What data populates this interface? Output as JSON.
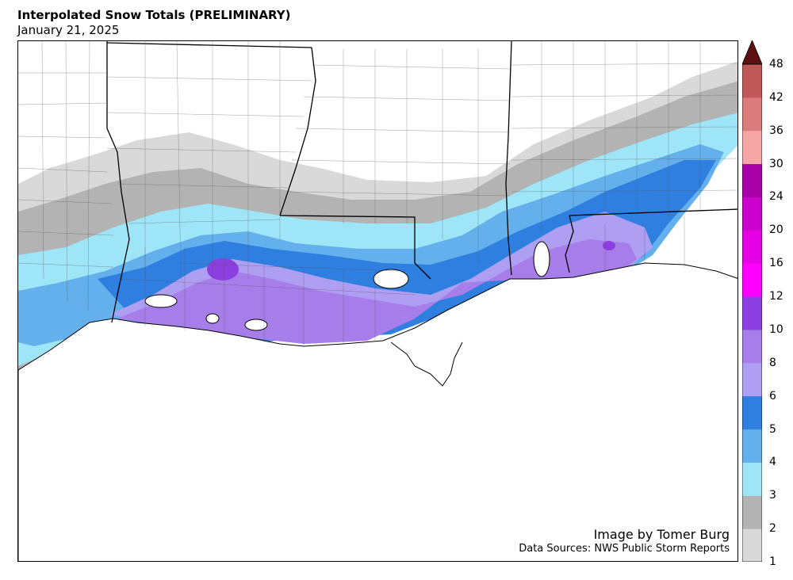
{
  "title": "Interpolated Snow Totals (PRELIMINARY)",
  "subtitle": "January 21, 2025",
  "credit": {
    "author": "Image by Tomer Burg",
    "sources": "Data Sources: NWS Public Storm Reports"
  },
  "legend": {
    "extend": "max",
    "levels": [
      {
        "value": 1,
        "label": "1",
        "color": "#d9d9d9"
      },
      {
        "value": 2,
        "label": "2",
        "color": "#b3b3b3"
      },
      {
        "value": 3,
        "label": "3",
        "color": "#9ee5f7"
      },
      {
        "value": 4,
        "label": "4",
        "color": "#63b0ec"
      },
      {
        "value": 5,
        "label": "5",
        "color": "#2e7fe0"
      },
      {
        "value": 6,
        "label": "6",
        "color": "#ae9ff2"
      },
      {
        "value": 8,
        "label": "8",
        "color": "#a77de9"
      },
      {
        "value": 10,
        "label": "10",
        "color": "#8c3fe0"
      },
      {
        "value": 12,
        "label": "12",
        "color": "#ff00ff"
      },
      {
        "value": 16,
        "label": "16",
        "color": "#e600e6"
      },
      {
        "value": 20,
        "label": "20",
        "color": "#cc00cc"
      },
      {
        "value": 24,
        "label": "24",
        "color": "#a600a6"
      },
      {
        "value": 30,
        "label": "30",
        "color": "#f7a6a6"
      },
      {
        "value": 36,
        "label": "36",
        "color": "#db7b7b"
      },
      {
        "value": 42,
        "label": "42",
        "color": "#c05858"
      },
      {
        "value": 48,
        "label": "48",
        "color": "#7a1b1b"
      }
    ],
    "top_color": "#5c1010"
  }
}
